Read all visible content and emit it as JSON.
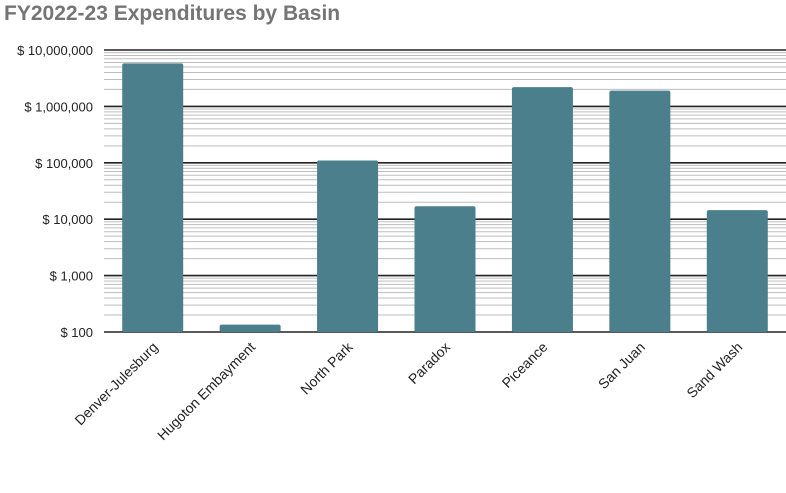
{
  "chart_data": {
    "type": "bar",
    "title": "FY2022-23 Expenditures by Basin",
    "xlabel": "",
    "ylabel": "",
    "yscale": "log",
    "ylim": [
      100,
      10000000
    ],
    "grid": true,
    "legend": "none",
    "bar_color": "#4a7f8b",
    "categories": [
      "Denver-Julesburg",
      "Hugoton Embayment",
      "North Park",
      "Paradox",
      "Piceance",
      "San Juan",
      "Sand Wash"
    ],
    "values": [
      5800000,
      135,
      110000,
      17000,
      2200000,
      1900000,
      14500
    ],
    "y_ticks": [
      100,
      1000,
      10000,
      100000,
      1000000,
      10000000
    ],
    "y_tick_labels": [
      "$ 100",
      "$ 1,000",
      "$ 10,000",
      "$ 100,000",
      "$ 1,000,000",
      "$ 10,000,000"
    ]
  }
}
